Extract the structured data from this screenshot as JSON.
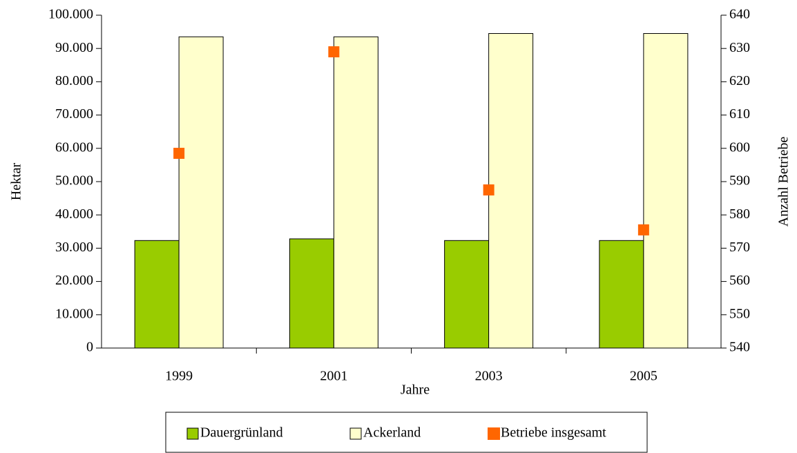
{
  "chart_data": {
    "type": "bar",
    "x_label": "Jahre",
    "y_label": "Hektar",
    "y2_label": "Anzahl Betriebe",
    "categories": [
      "1999",
      "2001",
      "2003",
      "2005"
    ],
    "series": [
      {
        "name": "Dauergrünland",
        "type": "bar",
        "color": "#99cc00",
        "values": [
          32300,
          32800,
          32300,
          32300
        ]
      },
      {
        "name": "Ackerland",
        "type": "bar",
        "color": "#ffffcc",
        "values": [
          93500,
          93500,
          94500,
          94500
        ]
      },
      {
        "name": "Betriebe insgesamt",
        "type": "scatter",
        "axis": "y2",
        "color": "#ff6600",
        "values": [
          598.5,
          629,
          587.5,
          575.5
        ]
      }
    ],
    "ylim": [
      0,
      100000
    ],
    "yticks": [
      0,
      {
        "value": 10000,
        "label": "10.000"
      },
      {
        "value": 20000,
        "label": "20.000"
      },
      {
        "value": 30000,
        "label": "30.000"
      },
      {
        "value": 40000,
        "label": "40.000"
      },
      {
        "value": 50000,
        "label": "50.000"
      },
      {
        "value": 60000,
        "label": "60.000"
      },
      {
        "value": 70000,
        "label": "70.000"
      },
      {
        "value": 80000,
        "label": "80.000"
      },
      {
        "value": 90000,
        "label": "90.000"
      },
      {
        "value": 100000,
        "label": "100.000"
      }
    ],
    "y2lim": [
      540,
      640
    ],
    "y2ticks": [
      540,
      550,
      560,
      570,
      580,
      590,
      600,
      610,
      620,
      630,
      640
    ],
    "grid": false,
    "legend": "bottom"
  }
}
